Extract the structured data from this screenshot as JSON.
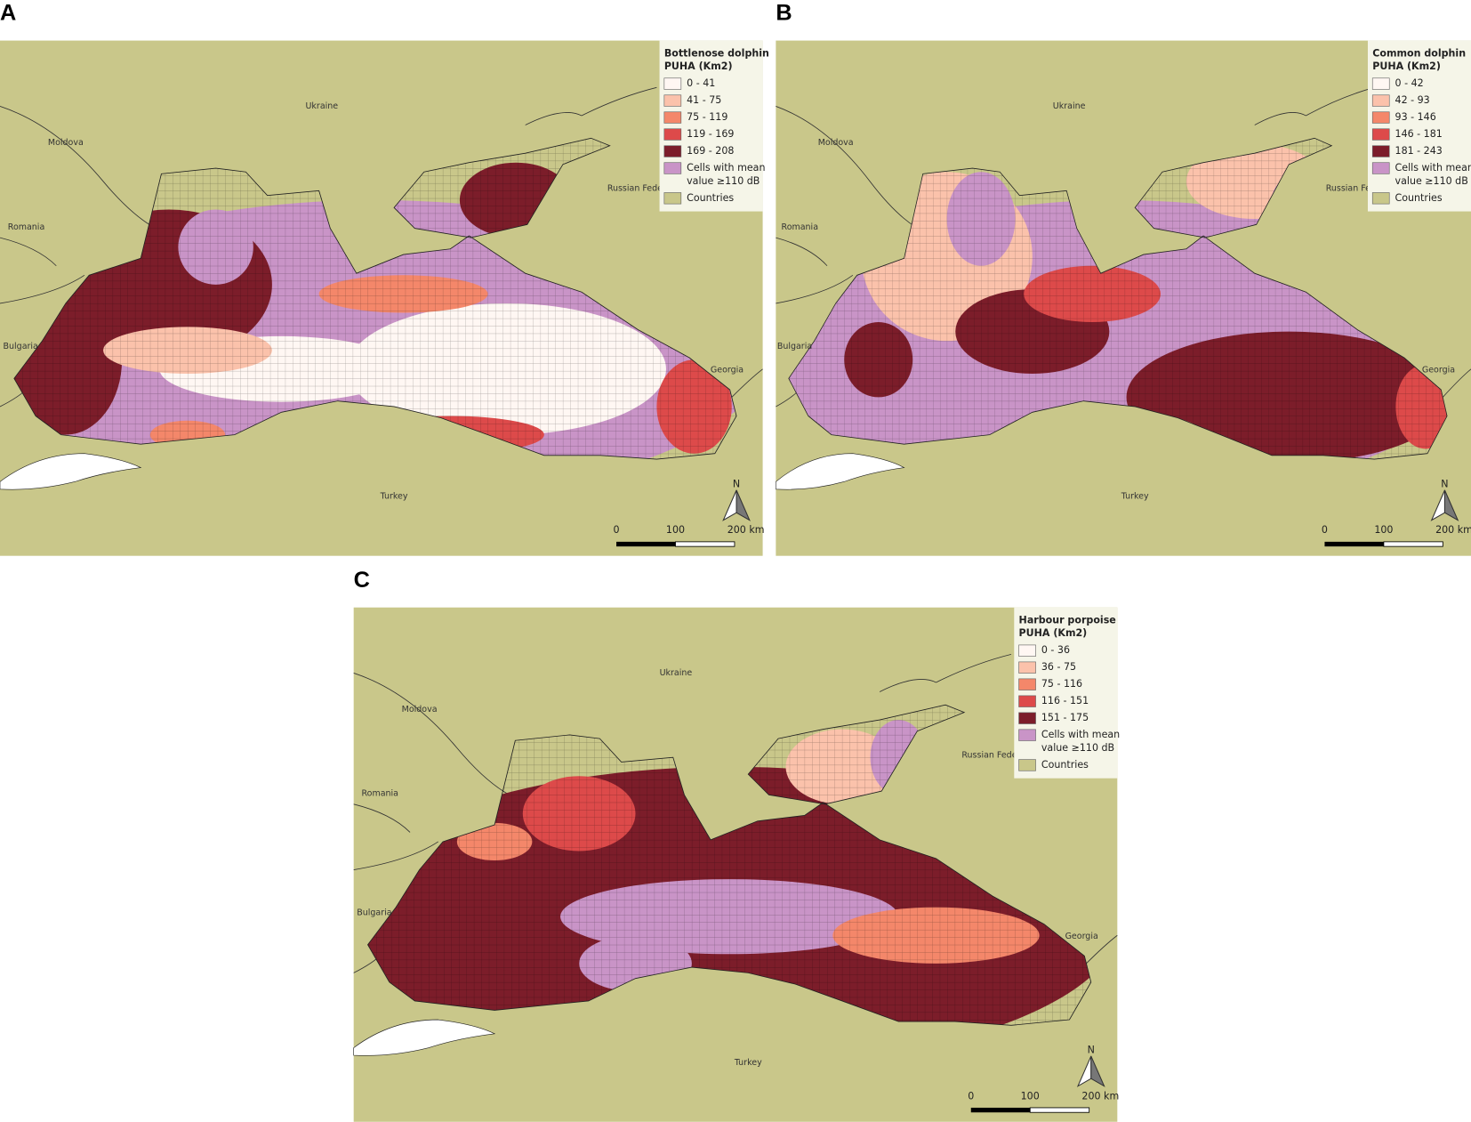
{
  "panels": [
    {
      "letter": "A",
      "legend": {
        "title": [
          "Bottlenose dolphin",
          "PUHA (Km2)"
        ],
        "items": [
          {
            "lines": [
              "0 - 41"
            ],
            "color": "#fff7f3"
          },
          {
            "lines": [
              "41 - 75"
            ],
            "color": "#fbc2ab"
          },
          {
            "lines": [
              "75 - 119"
            ],
            "color": "#f4876a"
          },
          {
            "lines": [
              "119 - 169"
            ],
            "color": "#dd4a4a"
          },
          {
            "lines": [
              "169 - 208"
            ],
            "color": "#7c1d2a"
          },
          {
            "lines": [
              "Cells with mean",
              "value ≥110 dB"
            ],
            "color": "#c994c7"
          },
          {
            "lines": [
              "Countries"
            ],
            "color": "#c9c78a"
          }
        ]
      },
      "countries": [
        "Ukraine",
        "Moldova",
        "Romania",
        "Bulgaria",
        "Georgia",
        "Turkey",
        "Russian Federation"
      ],
      "scale": [
        "0",
        "100",
        "200 km"
      ],
      "north": "N"
    },
    {
      "letter": "B",
      "legend": {
        "title": [
          "Common dolphin",
          "PUHA (Km2)"
        ],
        "items": [
          {
            "lines": [
              "0 - 42"
            ],
            "color": "#fff7f3"
          },
          {
            "lines": [
              "42 - 93"
            ],
            "color": "#fbc2ab"
          },
          {
            "lines": [
              "93 - 146"
            ],
            "color": "#f4876a"
          },
          {
            "lines": [
              "146 - 181"
            ],
            "color": "#dd4a4a"
          },
          {
            "lines": [
              "181 - 243"
            ],
            "color": "#7c1d2a"
          },
          {
            "lines": [
              "Cells with mean",
              "value ≥110 dB"
            ],
            "color": "#c994c7"
          },
          {
            "lines": [
              "Countries"
            ],
            "color": "#c9c78a"
          }
        ]
      },
      "countries": [
        "Ukraine",
        "Moldova",
        "Romania",
        "Bulgaria",
        "Georgia",
        "Turkey",
        "Russian Federation"
      ],
      "scale": [
        "0",
        "100",
        "200 km"
      ],
      "north": "N"
    },
    {
      "letter": "C",
      "legend": {
        "title": [
          "Harbour porpoise",
          "PUHA (Km2)"
        ],
        "items": [
          {
            "lines": [
              "0 - 36"
            ],
            "color": "#fff7f3"
          },
          {
            "lines": [
              "36 - 75"
            ],
            "color": "#fbc2ab"
          },
          {
            "lines": [
              "75 - 116"
            ],
            "color": "#f4876a"
          },
          {
            "lines": [
              "116 - 151"
            ],
            "color": "#dd4a4a"
          },
          {
            "lines": [
              "151 - 175"
            ],
            "color": "#7c1d2a"
          },
          {
            "lines": [
              "Cells with mean",
              "value ≥110 dB"
            ],
            "color": "#c994c7"
          },
          {
            "lines": [
              "Countries"
            ],
            "color": "#c9c78a"
          }
        ]
      },
      "countries": [
        "Ukraine",
        "Moldova",
        "Romania",
        "Bulgaria",
        "Georgia",
        "Turkey",
        "Russian Federation"
      ],
      "scale": [
        "0",
        "100",
        "200 km"
      ],
      "north": "N"
    }
  ]
}
